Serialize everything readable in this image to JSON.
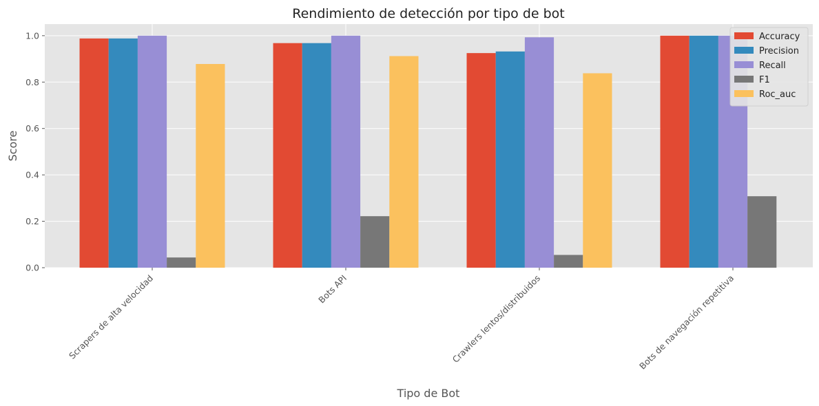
{
  "chart_data": {
    "type": "bar",
    "title": "Rendimiento de detección por tipo de bot",
    "xlabel": "Tipo de Bot",
    "ylabel": "Score",
    "ylim": [
      0,
      1.05
    ],
    "yticks": [
      0.0,
      0.2,
      0.4,
      0.6,
      0.8,
      1.0
    ],
    "ytick_labels": [
      "0.0",
      "0.2",
      "0.4",
      "0.6",
      "0.8",
      "1.0"
    ],
    "grid": true,
    "legend_position": "top-right",
    "categories": [
      "Scrapers de alta velocidad",
      "Bots API",
      "Crawlers lentos/distribuidos",
      "Bots de navegación repetitiva"
    ],
    "series": [
      {
        "name": "Accuracy",
        "color": "#E24A33",
        "values": [
          0.988,
          0.968,
          0.925,
          1.0
        ]
      },
      {
        "name": "Precision",
        "color": "#348ABD",
        "values": [
          0.988,
          0.968,
          0.932,
          1.0
        ]
      },
      {
        "name": "Recall",
        "color": "#988ED5",
        "values": [
          1.0,
          1.0,
          0.993,
          1.0
        ]
      },
      {
        "name": "F1",
        "color": "#777777",
        "values": [
          0.044,
          0.222,
          0.055,
          0.308
        ]
      },
      {
        "name": "Roc_auc",
        "color": "#FBC15E",
        "values": [
          0.878,
          0.912,
          0.838,
          null
        ]
      }
    ]
  }
}
